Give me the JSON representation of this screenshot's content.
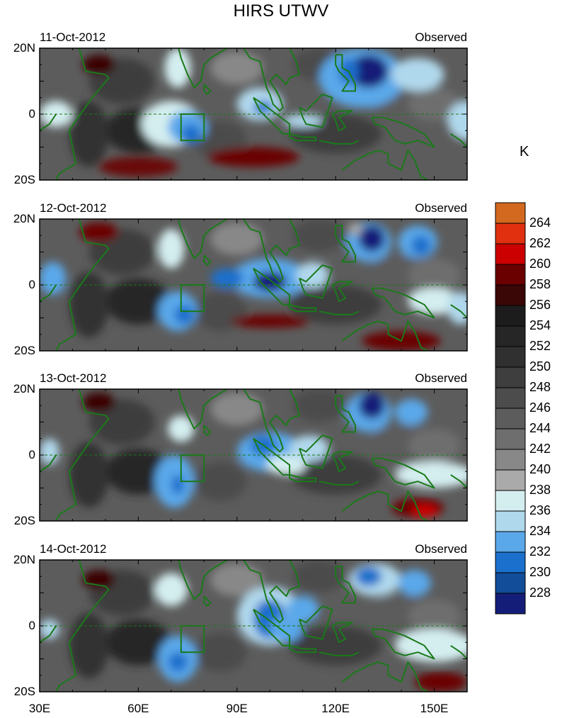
{
  "title": "HIRS UTWV",
  "unit": "K",
  "panels": [
    {
      "date": "11-Oct-2012",
      "label": "Observed"
    },
    {
      "date": "12-Oct-2012",
      "label": "Observed"
    },
    {
      "date": "13-Oct-2012",
      "label": "Observed"
    },
    {
      "date": "14-Oct-2012",
      "label": "Observed"
    }
  ],
  "lat_labels": [
    "20N",
    "0",
    "20S"
  ],
  "lon_labels": [
    "30E",
    "60E",
    "90E",
    "120E",
    "150E"
  ],
  "colorbar": {
    "levels": [
      "264",
      "262",
      "260",
      "258",
      "256",
      "254",
      "252",
      "250",
      "248",
      "246",
      "244",
      "242",
      "240",
      "238",
      "236",
      "234",
      "232",
      "230",
      "228"
    ],
    "colors": [
      "#d2691e",
      "#e03010",
      "#cc0000",
      "#6b0000",
      "#3a0606",
      "#1c1c1c",
      "#262626",
      "#303030",
      "#3e3e3e",
      "#4c4c4c",
      "#5c5c5c",
      "#6e6e6e",
      "#888888",
      "#aaaaaa",
      "#d4eef0",
      "#b0d8ec",
      "#5aa8ea",
      "#1a70cc",
      "#124d99",
      "#141e78"
    ]
  },
  "map": {
    "lon_range": [
      30,
      160
    ],
    "lat_range": [
      -20,
      20
    ],
    "box": {
      "lon": [
        73,
        80
      ],
      "lat": [
        -8,
        0
      ]
    }
  }
}
